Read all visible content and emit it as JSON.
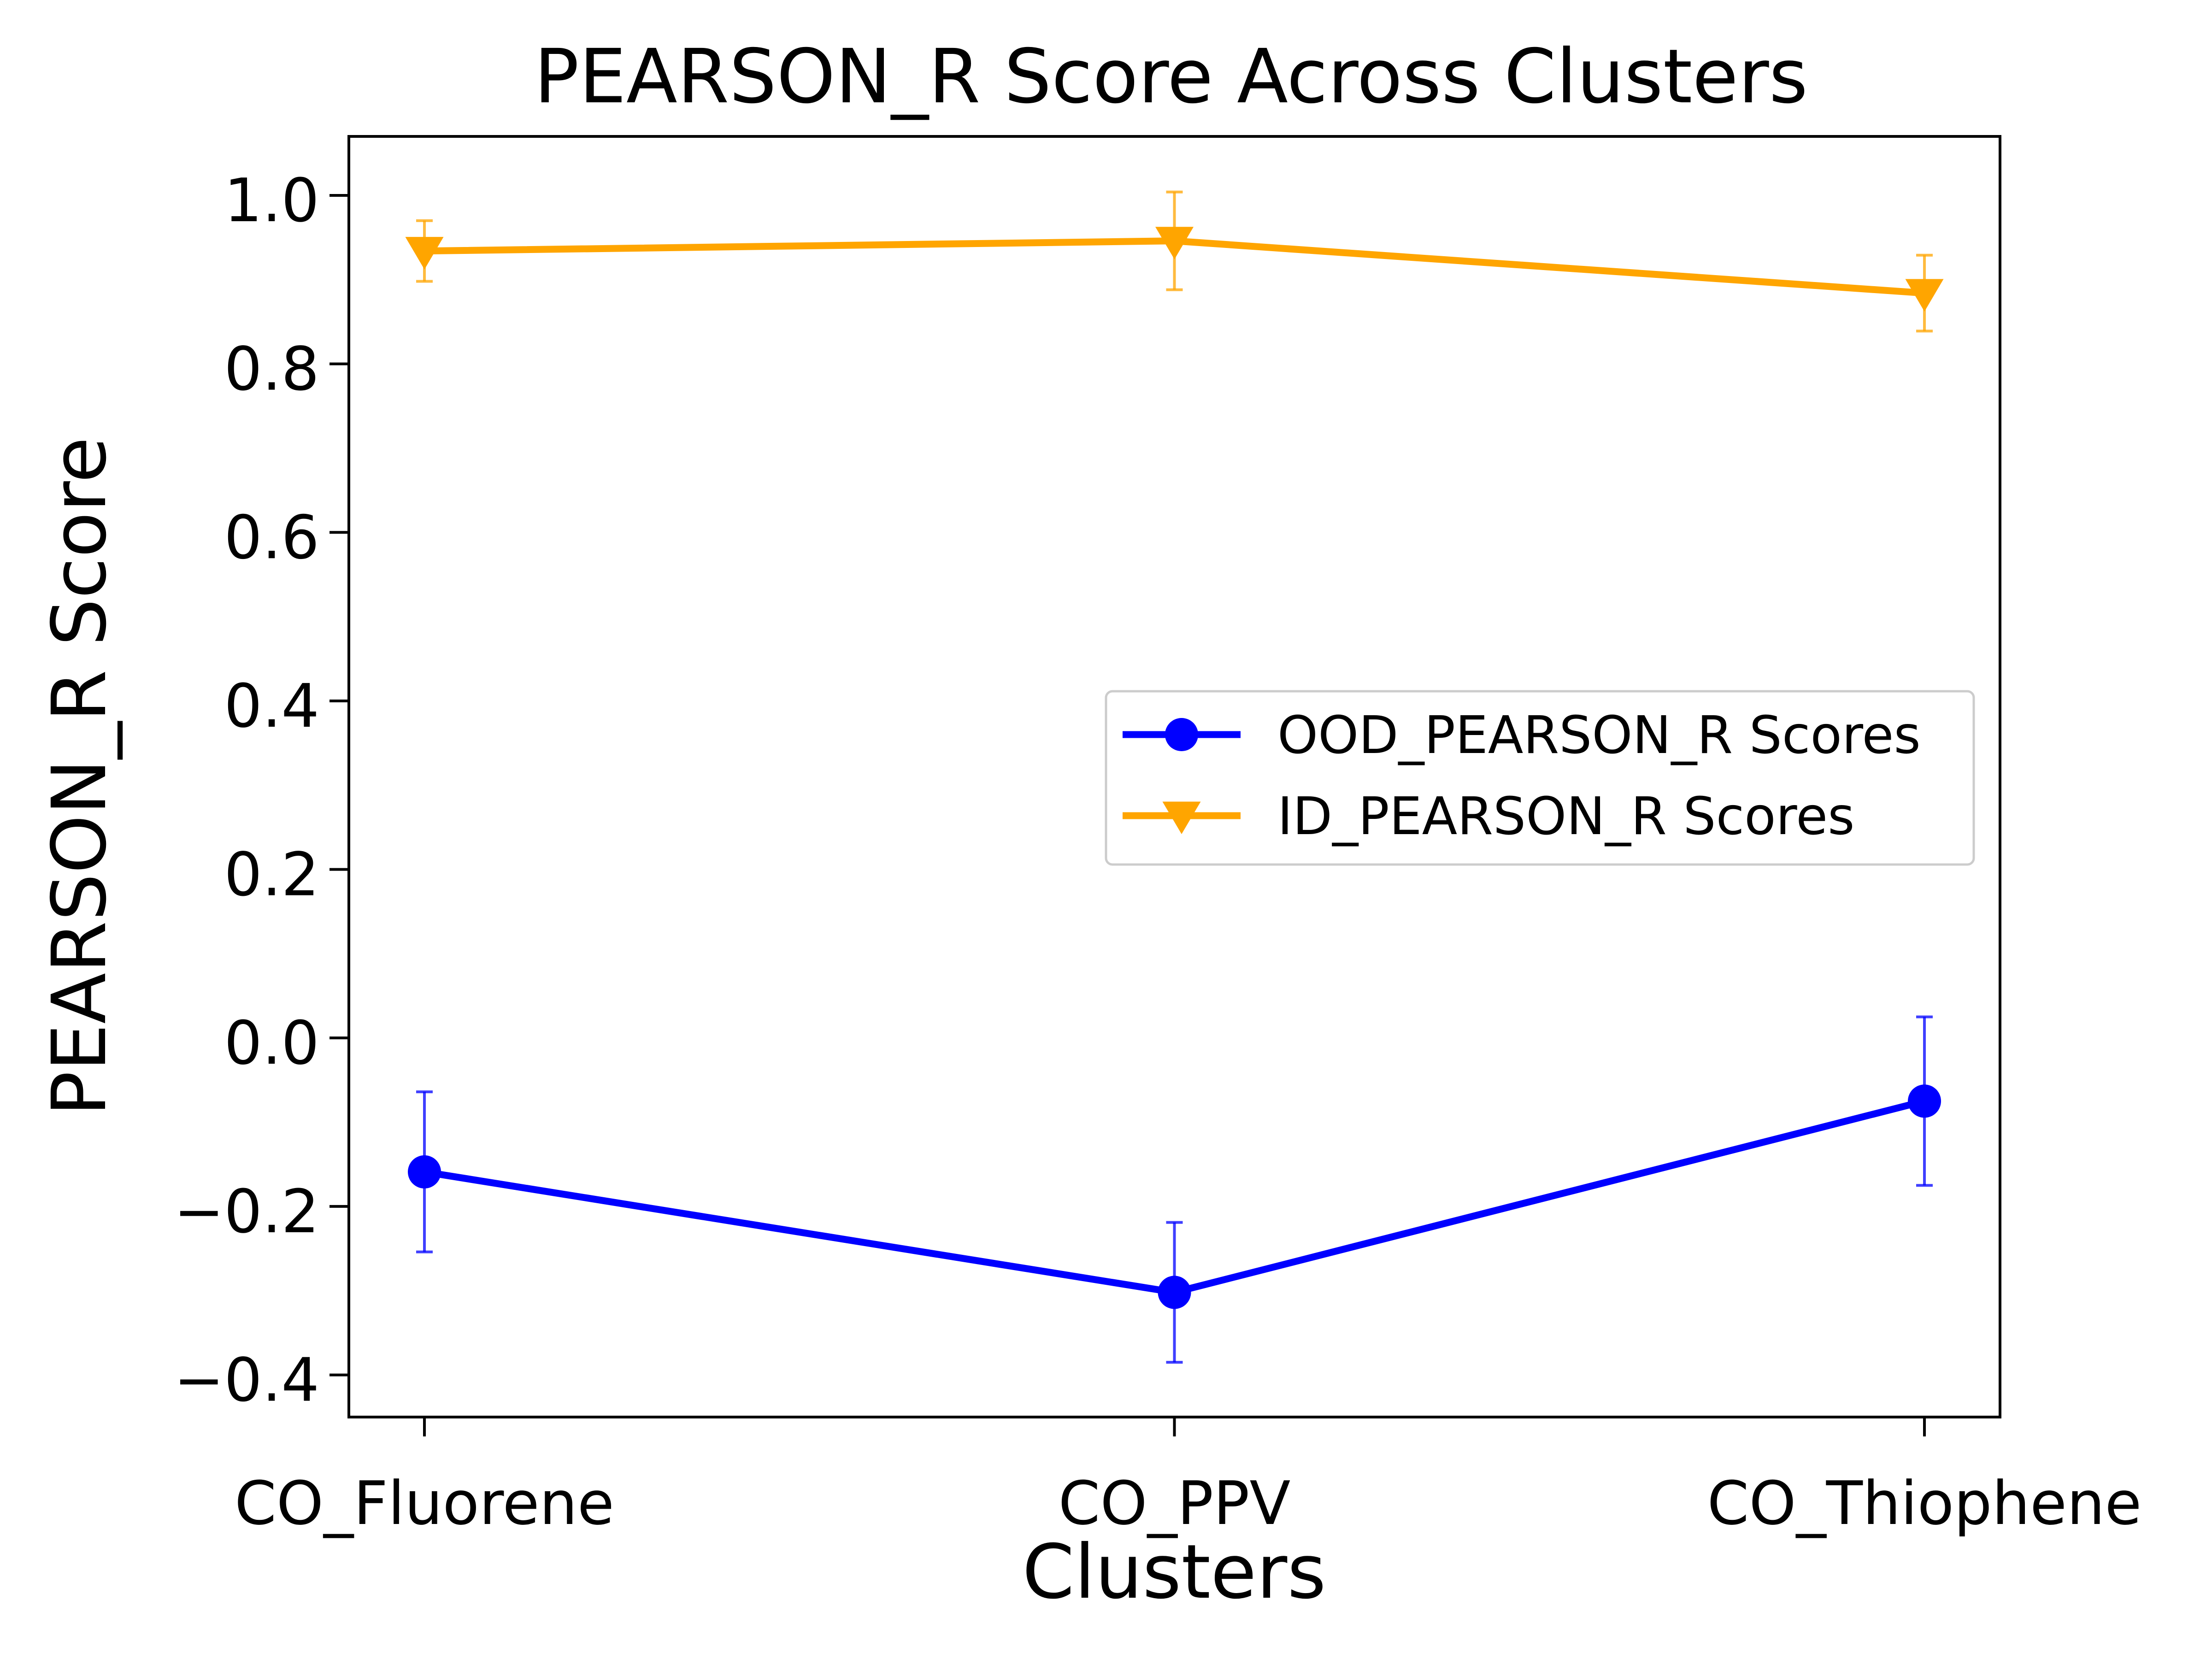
{
  "chart_data": {
    "type": "line",
    "title": "PEARSON_R Score Across Clusters",
    "xlabel": "Clusters",
    "ylabel": "PEARSON_R Score",
    "categories": [
      "CO_Fluorene",
      "CO_PPV",
      "CO_Thiophene"
    ],
    "ylim": [
      -0.45,
      1.07
    ],
    "yticks": [
      -0.4,
      -0.2,
      0.0,
      0.2,
      0.4,
      0.6,
      0.8,
      1.0
    ],
    "ytick_labels": [
      "−0.4",
      "−0.2",
      "0.0",
      "0.2",
      "0.4",
      "0.6",
      "0.8",
      "1.0"
    ],
    "grid": false,
    "legend_placement": "center-right",
    "series": [
      {
        "name": "OOD_PEARSON_R Scores",
        "color": "#0000ff",
        "marker": "circle",
        "values": [
          -0.159,
          -0.302,
          -0.075
        ],
        "error": [
          0.095,
          0.083,
          0.1
        ]
      },
      {
        "name": "ID_PEARSON_R Scores",
        "color": "#ffa500",
        "marker": "triangle-down",
        "values": [
          0.934,
          0.946,
          0.884
        ],
        "error": [
          0.036,
          0.058,
          0.045
        ]
      }
    ]
  }
}
